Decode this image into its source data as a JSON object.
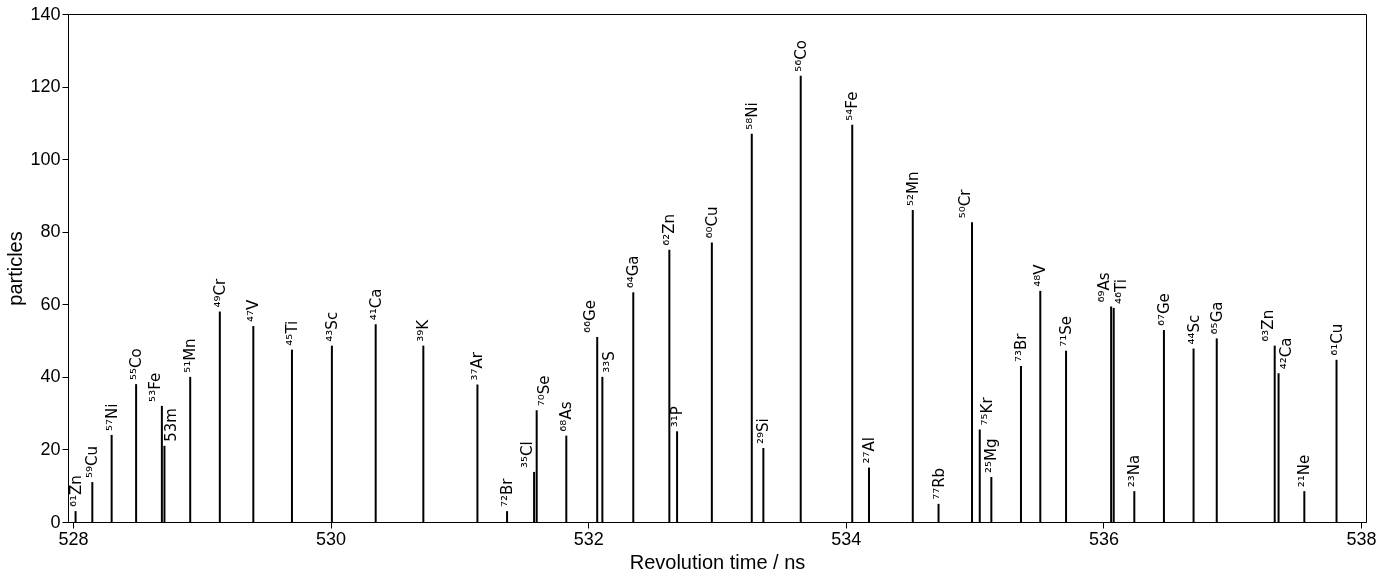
{
  "chart_data": {
    "type": "bar",
    "xlabel": "Revolution time / ns",
    "ylabel": "particles",
    "xlim": [
      528,
      538
    ],
    "xticks": [
      528,
      530,
      532,
      534,
      536,
      538
    ],
    "ylim": [
      0,
      140
    ],
    "yticks": [
      0,
      20,
      40,
      60,
      80,
      100,
      120,
      140
    ],
    "grid": false,
    "x": [
      528.02,
      528.15,
      528.3,
      528.49,
      528.69,
      528.71,
      528.91,
      529.14,
      529.4,
      529.7,
      530.01,
      530.35,
      530.72,
      531.14,
      531.37,
      531.58,
      531.6,
      531.83,
      532.07,
      532.11,
      532.35,
      532.63,
      532.69,
      532.96,
      533.27,
      533.36,
      533.65,
      534.05,
      534.18,
      534.52,
      534.72,
      534.98,
      535.04,
      535.13,
      535.36,
      535.51,
      535.71,
      536.06,
      536.08,
      536.24,
      536.47,
      536.7,
      536.88,
      537.33,
      537.36,
      537.56,
      537.81
    ],
    "series": [
      {
        "color": "#000000",
        "values": [
          3,
          11,
          24,
          38,
          32,
          21,
          40,
          58,
          54,
          47.5,
          48.6,
          54.5,
          48.6,
          37.9,
          3,
          13.8,
          30.8,
          23.8,
          51,
          40,
          63.3,
          75,
          25,
          77,
          107,
          20.4,
          123,
          109.5,
          15,
          86,
          5,
          82.6,
          25.5,
          12.4,
          43,
          63.7,
          47.2,
          59.4,
          59,
          8.5,
          52.9,
          47.8,
          50.6,
          48.6,
          41,
          8.5,
          44.7
        ]
      }
    ],
    "annotations": [
      {
        "text": "⁶¹Zn",
        "x": 528.02,
        "y": 3
      },
      {
        "text": "⁵⁹Cu",
        "x": 528.15,
        "y": 11
      },
      {
        "text": "⁵⁷Ni",
        "x": 528.3,
        "y": 24
      },
      {
        "text": "⁵⁵Co",
        "x": 528.49,
        "y": 38
      },
      {
        "text": "⁵³Fe",
        "x": 528.69,
        "y": 32
      },
      {
        "text": "53m",
        "x": 528.71,
        "y": 21
      },
      {
        "text": "⁵¹Mn",
        "x": 528.91,
        "y": 40
      },
      {
        "text": "⁴⁹Cr",
        "x": 529.14,
        "y": 58
      },
      {
        "text": "⁴⁷V",
        "x": 529.4,
        "y": 54
      },
      {
        "text": "⁴⁵Ti",
        "x": 529.7,
        "y": 47.5
      },
      {
        "text": "⁴³Sc",
        "x": 530.01,
        "y": 48.6
      },
      {
        "text": "⁴¹Ca",
        "x": 530.35,
        "y": 54.5
      },
      {
        "text": "³⁹K",
        "x": 530.72,
        "y": 48.6
      },
      {
        "text": "³⁷Ar",
        "x": 531.14,
        "y": 37.9
      },
      {
        "text": "⁷²Br",
        "x": 531.37,
        "y": 3
      },
      {
        "text": "³⁵Cl",
        "x": 531.58,
        "y": 13.8
      },
      {
        "text": "⁷⁰Se",
        "x": 531.6,
        "y": 30.8
      },
      {
        "text": "⁶⁸As",
        "x": 531.83,
        "y": 23.8
      },
      {
        "text": "⁶⁶Ge",
        "x": 532.07,
        "y": 51
      },
      {
        "text": "³³S",
        "x": 532.11,
        "y": 40
      },
      {
        "text": "⁶⁴Ga",
        "x": 532.35,
        "y": 63.3
      },
      {
        "text": "⁶²Zn",
        "x": 532.63,
        "y": 75
      },
      {
        "text": "³¹P",
        "x": 532.69,
        "y": 25
      },
      {
        "text": "⁶⁰Cu",
        "x": 532.96,
        "y": 77
      },
      {
        "text": "⁵⁸Ni",
        "x": 533.27,
        "y": 107
      },
      {
        "text": "²⁹Si",
        "x": 533.36,
        "y": 20.4
      },
      {
        "text": "⁵⁶Co",
        "x": 533.65,
        "y": 123
      },
      {
        "text": "⁵⁴Fe",
        "x": 534.05,
        "y": 109.5
      },
      {
        "text": "²⁷Al",
        "x": 534.18,
        "y": 15
      },
      {
        "text": "⁵²Mn",
        "x": 534.52,
        "y": 86
      },
      {
        "text": "⁷⁷Rb",
        "x": 534.72,
        "y": 5
      },
      {
        "text": "⁵⁰Cr",
        "x": 534.98,
        "y": 82.6
      },
      {
        "text": "⁷⁵Kr",
        "x": 535.04,
        "y": 25.5
      },
      {
        "text": "²⁵Mg",
        "x": 535.13,
        "y": 12.4
      },
      {
        "text": "⁷³Br",
        "x": 535.36,
        "y": 43
      },
      {
        "text": "⁴⁸V",
        "x": 535.51,
        "y": 63.7
      },
      {
        "text": "⁷¹Se",
        "x": 535.71,
        "y": 47.2
      },
      {
        "text": "⁶⁹As",
        "x": 536.06,
        "y": 59.4
      },
      {
        "text": "⁴⁶Ti",
        "x": 536.08,
        "y": 59
      },
      {
        "text": "²³Na",
        "x": 536.24,
        "y": 8.5
      },
      {
        "text": "⁶⁷Ge",
        "x": 536.47,
        "y": 52.9
      },
      {
        "text": "⁴⁴Sc",
        "x": 536.7,
        "y": 47.8
      },
      {
        "text": "⁶⁵Ga",
        "x": 536.88,
        "y": 50.6
      },
      {
        "text": "⁶³Zn",
        "x": 537.33,
        "y": 48.6
      },
      {
        "text": "⁴²Ca",
        "x": 537.36,
        "y": 41
      },
      {
        "text": "²¹Ne",
        "x": 537.56,
        "y": 8.5
      },
      {
        "text": "⁶¹Cu",
        "x": 537.81,
        "y": 44.7
      }
    ]
  }
}
